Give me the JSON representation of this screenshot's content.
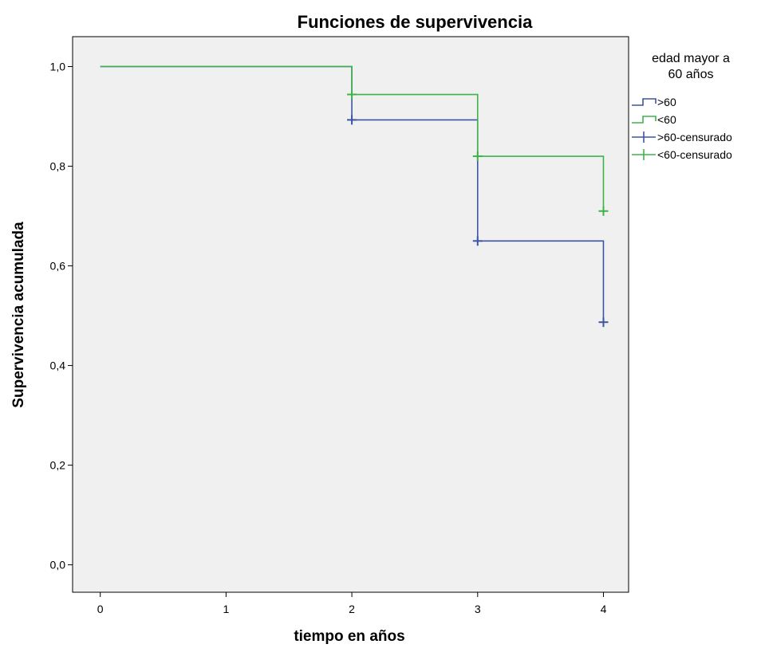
{
  "chart_data": {
    "type": "line",
    "subtype": "kaplan-meier-step",
    "title": "Funciones de supervivencia",
    "xlabel": "tiempo en años",
    "ylabel": "Supervivencia acumulada",
    "xlim": [
      -0.22,
      4.2
    ],
    "ylim": [
      -0.055,
      1.06
    ],
    "xticks": [
      0,
      1,
      2,
      3,
      4
    ],
    "xtick_labels": [
      "0",
      "1",
      "2",
      "3",
      "4"
    ],
    "yticks": [
      0.0,
      0.2,
      0.4,
      0.6,
      0.8,
      1.0
    ],
    "ytick_labels": [
      "0,0",
      "0,2",
      "0,4",
      "0,6",
      "0,8",
      "1,0"
    ],
    "grid": false,
    "plot_background": "#f0f0f0",
    "legend": {
      "title_lines": [
        "edad mayor a",
        "60 años"
      ],
      "placement": "right",
      "entries": [
        {
          "label": ">60",
          "kind": "step",
          "color": "#3d54a5"
        },
        {
          "label": "<60",
          "kind": "step",
          "color": "#3fb24a"
        },
        {
          "label": ">60-censurado",
          "kind": "censor",
          "color": "#3d54a5"
        },
        {
          "label": "<60-censurado",
          "kind": "censor",
          "color": "#3fb24a"
        }
      ]
    },
    "series": [
      {
        "name": ">60",
        "color": "#3d54a5",
        "step_x": [
          0,
          2,
          2,
          3,
          3,
          4,
          4
        ],
        "step_y": [
          1.0,
          1.0,
          0.893,
          0.893,
          0.65,
          0.65,
          0.487
        ],
        "censored": [
          {
            "x": 2,
            "y": 0.893
          },
          {
            "x": 3,
            "y": 0.65
          },
          {
            "x": 4,
            "y": 0.487
          }
        ]
      },
      {
        "name": "<60",
        "color": "#3fb24a",
        "step_x": [
          0,
          2,
          2,
          3,
          3,
          4,
          4
        ],
        "step_y": [
          1.0,
          1.0,
          0.944,
          0.944,
          0.82,
          0.82,
          0.71
        ],
        "censored": [
          {
            "x": 2,
            "y": 0.944
          },
          {
            "x": 3,
            "y": 0.82
          },
          {
            "x": 4,
            "y": 0.71
          }
        ]
      }
    ]
  }
}
